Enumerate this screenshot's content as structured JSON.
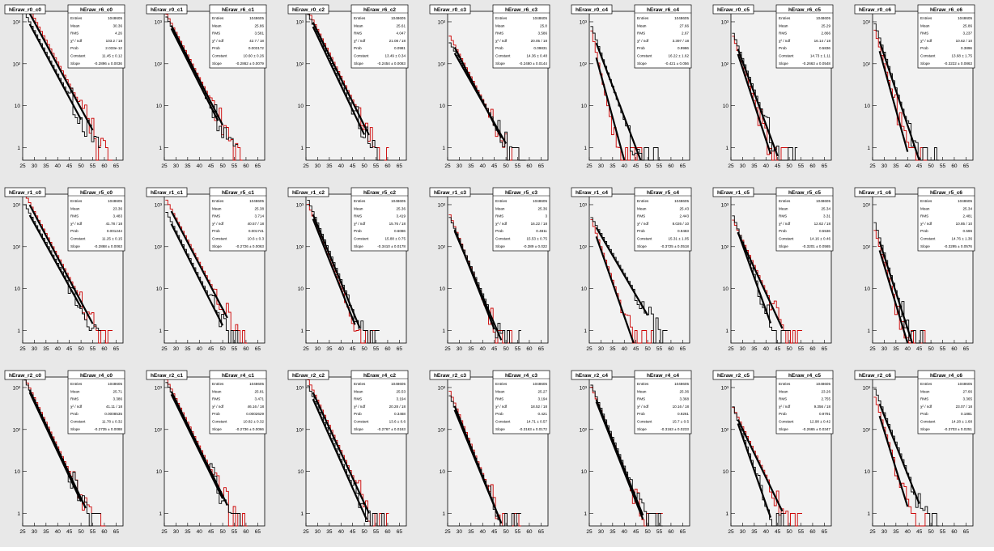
{
  "stat_labels": {
    "entries": "Entries",
    "mean": "Mean",
    "rms": "RMS",
    "chi2": "χ² / ndf",
    "prob": "Prob",
    "constant": "Constant",
    "slope": "Slope"
  },
  "x_ticks": [
    "25",
    "30",
    "35",
    "40",
    "45",
    "50",
    "55",
    "60",
    "65"
  ],
  "y_tick_labels": [
    "1",
    "10",
    "10²",
    "10³"
  ],
  "colors": {
    "frame_bg": "#e8e8e8",
    "plot_bg": "#f2f2f2",
    "hist_a": "#000000",
    "hist_b": "#cc0000",
    "fit": "#000000"
  },
  "chart_data": [
    {
      "type": "line",
      "title": "hEraw_r0_c0",
      "stat_title": "hEraw_r6_c0",
      "stats": {
        "entries": "1048605",
        "mean": "30.36",
        "rms": "4.26",
        "chi2": "103.2 / 18",
        "prob": "2.033e-12",
        "constant": "11.45 ± 0.12",
        "slope": "-0.2896 ± 0.0036"
      },
      "xlim": [
        25,
        68
      ],
      "ylim_log": [
        0.5,
        3
      ],
      "xlabel": "",
      "ylabel": "",
      "a": {
        "c": 3.05,
        "k": 0.1035,
        "end": 50
      },
      "b": {
        "c": 3.35,
        "k": 0.1048,
        "end": 55
      },
      "series": [
        {
          "color": "#000000",
          "values": []
        },
        {
          "color": "#cc0000",
          "values": []
        }
      ]
    },
    {
      "type": "line",
      "title": "hEraw_r0_c1",
      "stat_title": "hEraw_r6_c1",
      "stats": {
        "entries": "1048605",
        "mean": "25.86",
        "rms": "3.581",
        "chi2": "42.7 / 18",
        "prob": "0.003172",
        "constant": "10.60 ± 0.26",
        "slope": "-0.2862 ± 0.0079"
      },
      "xlim": [
        25,
        68
      ],
      "ylim_log": [
        0.5,
        3
      ],
      "xlabel": "",
      "ylabel": "",
      "a": {
        "c": 2.95,
        "k": 0.11,
        "end": 48
      },
      "b": {
        "c": 3.02,
        "k": 0.108,
        "end": 50
      },
      "series": [
        {
          "color": "#000000",
          "values": []
        },
        {
          "color": "#cc0000",
          "values": []
        }
      ]
    },
    {
      "type": "line",
      "title": "hEraw_r0_c2",
      "stat_title": "hEraw_r6_c2",
      "stats": {
        "entries": "1048605",
        "mean": "25.61",
        "rms": "4.047",
        "chi2": "21.08 / 18",
        "prob": "0.0981",
        "constant": "13.49 ± 0.34",
        "slope": "-0.2454 ± 0.0083"
      },
      "xlim": [
        25,
        68
      ],
      "ylim_log": [
        0.5,
        3
      ],
      "xlabel": "",
      "ylabel": "",
      "a": {
        "c": 3.0,
        "k": 0.117,
        "end": 50
      },
      "b": {
        "c": 3.1,
        "k": 0.112,
        "end": 52
      },
      "series": [
        {
          "color": "#000000",
          "values": []
        },
        {
          "color": "#cc0000",
          "values": []
        }
      ]
    },
    {
      "type": "line",
      "title": "hEraw_r0_c3",
      "stat_title": "hEraw_r6_c3",
      "stats": {
        "entries": "1048605",
        "mean": "25.8",
        "rms": "3.586",
        "chi2": "20.05 / 18",
        "prob": "0.09831",
        "constant": "14.36 ± 0.48",
        "slope": "-0.2480 ± 0.0144"
      },
      "xlim": [
        25,
        68
      ],
      "ylim_log": [
        0.5,
        3
      ],
      "xlabel": "",
      "ylabel": "",
      "a": {
        "c": 2.35,
        "k": 0.098,
        "end": 50
      },
      "b": {
        "c": 2.5,
        "k": 0.108,
        "end": 48
      },
      "series": [
        {
          "color": "#000000",
          "values": []
        },
        {
          "color": "#cc0000",
          "values": []
        }
      ]
    },
    {
      "type": "line",
      "title": "hEraw_r0_c4",
      "stat_title": "hEraw_r6_c4",
      "stats": {
        "entries": "1048605",
        "mean": "27.66",
        "rms": "2.67",
        "chi2": "3.397 / 18",
        "prob": "0.9986",
        "constant": "16.22 ± 1.62",
        "slope": "-0.421 ± 0.056"
      },
      "xlim": [
        25,
        68
      ],
      "ylim_log": [
        0.5,
        3
      ],
      "xlabel": "",
      "ylabel": "",
      "a": {
        "c": 2.65,
        "k": 0.158,
        "end": 47
      },
      "b": {
        "c": 2.4,
        "k": 0.255,
        "end": 40
      },
      "series": [
        {
          "color": "#000000",
          "values": []
        },
        {
          "color": "#cc0000",
          "values": []
        }
      ]
    },
    {
      "type": "line",
      "title": "hEraw_r0_c5",
      "stat_title": "hEraw_r6_c5",
      "stats": {
        "entries": "1048605",
        "mean": "25.29",
        "rms": "2.866",
        "chi2": "16.14 / 18",
        "prob": "0.5836",
        "constant": "14.73 ± 1.11",
        "slope": "-0.2663 ± 0.0548"
      },
      "xlim": [
        25,
        68
      ],
      "ylim_log": [
        0.5,
        3
      ],
      "xlabel": "",
      "ylabel": "",
      "a": {
        "c": 2.5,
        "k": 0.15,
        "end": 45
      },
      "b": {
        "c": 2.4,
        "k": 0.17,
        "end": 42
      },
      "series": [
        {
          "color": "#000000",
          "values": []
        },
        {
          "color": "#cc0000",
          "values": []
        }
      ]
    },
    {
      "type": "line",
      "title": "hEraw_r0_c6",
      "stat_title": "hEraw_r6_c6",
      "stats": {
        "entries": "1048605",
        "mean": "25.86",
        "rms": "3.237",
        "chi2": "10.62 / 10",
        "prob": "0.3896",
        "constant": "13.68 ± 1.75",
        "slope": "-0.3222 ± 0.0863"
      },
      "xlim": [
        25,
        68
      ],
      "ylim_log": [
        0.5,
        3
      ],
      "xlabel": "",
      "ylabel": "",
      "a": {
        "c": 2.7,
        "k": 0.17,
        "end": 45
      },
      "b": {
        "c": 2.5,
        "k": 0.2,
        "end": 40
      },
      "series": [
        {
          "color": "#000000",
          "values": []
        },
        {
          "color": "#cc0000",
          "values": []
        }
      ]
    },
    {
      "type": "line",
      "title": "hEraw_r1_c0",
      "stat_title": "hEraw_r5_c0",
      "stats": {
        "entries": "1048605",
        "mean": "23.36",
        "rms": "3.483",
        "chi2": "41.78 / 18",
        "prob": "0.001244",
        "constant": "11.25 ± 0.15",
        "slope": "-0.2868 ± 0.0063"
      },
      "xlim": [
        25,
        68
      ],
      "ylim_log": [
        0.5,
        3
      ],
      "xlabel": "",
      "ylabel": "",
      "a": {
        "c": 2.85,
        "k": 0.1,
        "end": 50
      },
      "b": {
        "c": 3.1,
        "k": 0.105,
        "end": 55
      },
      "series": [
        {
          "color": "#000000",
          "values": []
        },
        {
          "color": "#cc0000",
          "values": []
        }
      ]
    },
    {
      "type": "line",
      "title": "hEraw_r1_c1",
      "stat_title": "hEraw_r5_c1",
      "stats": {
        "entries": "1048605",
        "mean": "25.38",
        "rms": "3.714",
        "chi2": "40.57 / 18",
        "prob": "0.001741",
        "constant": "10.6 ± 0.3",
        "slope": "-0.2726 ± 0.0063"
      },
      "xlim": [
        25,
        68
      ],
      "ylim_log": [
        0.5,
        3
      ],
      "xlabel": "",
      "ylabel": "",
      "a": {
        "c": 2.65,
        "k": 0.11,
        "end": 50
      },
      "b": {
        "c": 2.95,
        "k": 0.106,
        "end": 52
      },
      "series": [
        {
          "color": "#000000",
          "values": []
        },
        {
          "color": "#cc0000",
          "values": []
        }
      ]
    },
    {
      "type": "line",
      "title": "hEraw_r1_c2",
      "stat_title": "hEraw_r5_c2",
      "stats": {
        "entries": "1048605",
        "mean": "25.36",
        "rms": "3.419",
        "chi2": "15.76 / 18",
        "prob": "0.6086",
        "constant": "15.88 ± 0.75",
        "slope": "-0.3410 ± 0.0178"
      },
      "xlim": [
        25,
        68
      ],
      "ylim_log": [
        0.5,
        3
      ],
      "xlabel": "",
      "ylabel": "",
      "a": {
        "c": 2.9,
        "k": 0.135,
        "end": 48
      },
      "b": {
        "c": 2.8,
        "k": 0.14,
        "end": 46
      },
      "series": [
        {
          "color": "#000000",
          "values": []
        },
        {
          "color": "#cc0000",
          "values": []
        }
      ]
    },
    {
      "type": "line",
      "title": "hEraw_r1_c3",
      "stat_title": "hEraw_r5_c3",
      "stats": {
        "entries": "1048605",
        "mean": "25.36",
        "rms": "3",
        "chi2": "16.22 / 18",
        "prob": "0.4811",
        "constant": "15.53 ± 0.75",
        "slope": "-0.389 ± 0.022"
      },
      "xlim": [
        25,
        68
      ],
      "ylim_log": [
        0.5,
        3
      ],
      "xlabel": "",
      "ylabel": "",
      "a": {
        "c": 2.5,
        "k": 0.13,
        "end": 48
      },
      "b": {
        "c": 2.55,
        "k": 0.14,
        "end": 45
      },
      "series": [
        {
          "color": "#000000",
          "values": []
        },
        {
          "color": "#cc0000",
          "values": []
        }
      ]
    },
    {
      "type": "line",
      "title": "hEraw_r1_c4",
      "stat_title": "hEraw_r5_c4",
      "stats": {
        "entries": "1048605",
        "mean": "25.43",
        "rms": "2.443",
        "chi2": "8.026 / 10",
        "prob": "0.9483",
        "constant": "15.31 ± 1.05",
        "slope": "-0.3725 ± 0.0518"
      },
      "xlim": [
        25,
        68
      ],
      "ylim_log": [
        0.5,
        3
      ],
      "xlabel": "",
      "ylabel": "",
      "a": {
        "c": 2.55,
        "k": 0.095,
        "end": 50
      },
      "b": {
        "c": 2.4,
        "k": 0.16,
        "end": 44
      },
      "series": [
        {
          "color": "#000000",
          "values": []
        },
        {
          "color": "#cc0000",
          "values": []
        }
      ]
    },
    {
      "type": "line",
      "title": "hEraw_r1_c5",
      "stat_title": "hEraw_r5_c5",
      "stats": {
        "entries": "1048605",
        "mean": "25.34",
        "rms": "3.31",
        "chi2": "12.62 / 18",
        "prob": "0.5536",
        "constant": "14.16 ± 0.46",
        "slope": "-0.3201 ± 0.0565"
      },
      "xlim": [
        25,
        68
      ],
      "ylim_log": [
        0.5,
        3
      ],
      "xlabel": "",
      "ylabel": "",
      "a": {
        "c": 2.5,
        "k": 0.155,
        "end": 42
      },
      "b": {
        "c": 2.45,
        "k": 0.12,
        "end": 47
      },
      "series": [
        {
          "color": "#000000",
          "values": []
        },
        {
          "color": "#cc0000",
          "values": []
        }
      ]
    },
    {
      "type": "line",
      "title": "hEraw_r1_c6",
      "stat_title": "hEraw_r5_c6",
      "stats": {
        "entries": "1048605",
        "mean": "25.34",
        "rms": "2.481",
        "chi2": "10.85 / 10",
        "prob": "0.596",
        "constant": "14.76 ± 1.36",
        "slope": "-0.3295 ± 0.0576"
      },
      "xlim": [
        25,
        68
      ],
      "ylim_log": [
        0.5,
        3
      ],
      "xlabel": "",
      "ylabel": "",
      "a": {
        "c": 2.3,
        "k": 0.18,
        "end": 42
      },
      "b": {
        "c": 2.1,
        "k": 0.19,
        "end": 40
      },
      "series": [
        {
          "color": "#000000",
          "values": []
        },
        {
          "color": "#cc0000",
          "values": []
        }
      ]
    },
    {
      "type": "line",
      "title": "hEraw_r2_c0",
      "stat_title": "hEraw_r4_c0",
      "stats": {
        "entries": "1048605",
        "mean": "25.71",
        "rms": "3.386",
        "chi2": "41.11 / 18",
        "prob": "0.0008535",
        "constant": "11.78 ± 0.32",
        "slope": "-0.2735 ± 0.0088"
      },
      "xlim": [
        25,
        68
      ],
      "ylim_log": [
        0.5,
        3
      ],
      "xlabel": "",
      "ylabel": "",
      "a": {
        "c": 3.0,
        "k": 0.118,
        "end": 50
      },
      "b": {
        "c": 3.05,
        "k": 0.117,
        "end": 52
      },
      "series": [
        {
          "color": "#000000",
          "values": []
        },
        {
          "color": "#cc0000",
          "values": []
        }
      ]
    },
    {
      "type": "line",
      "title": "hEraw_r2_c1",
      "stat_title": "hEraw_r4_c1",
      "stats": {
        "entries": "1048605",
        "mean": "25.81",
        "rms": "3.471",
        "chi2": "46.16 / 18",
        "prob": "0.0002629",
        "constant": "10.82 ± 0.32",
        "slope": "-0.2736 ± 0.0066"
      },
      "xlim": [
        25,
        68
      ],
      "ylim_log": [
        0.5,
        3
      ],
      "xlabel": "",
      "ylabel": "",
      "a": {
        "c": 2.95,
        "k": 0.113,
        "end": 50
      },
      "b": {
        "c": 3.02,
        "k": 0.113,
        "end": 52
      },
      "series": [
        {
          "color": "#000000",
          "values": []
        },
        {
          "color": "#cc0000",
          "values": []
        }
      ]
    },
    {
      "type": "line",
      "title": "hEraw_r2_c2",
      "stat_title": "hEraw_r4_c2",
      "stats": {
        "entries": "1048605",
        "mean": "25.53",
        "rms": "3.194",
        "chi2": "20.28 / 18",
        "prob": "0.3468",
        "constant": "13.6 ± 0.6",
        "slope": "-0.2767 ± 0.0163"
      },
      "xlim": [
        25,
        68
      ],
      "ylim_log": [
        0.5,
        3
      ],
      "xlabel": "",
      "ylabel": "",
      "a": {
        "c": 2.85,
        "k": 0.125,
        "end": 51
      },
      "b": {
        "c": 3.0,
        "k": 0.12,
        "end": 52
      },
      "series": [
        {
          "color": "#000000",
          "values": []
        },
        {
          "color": "#cc0000",
          "values": []
        }
      ]
    },
    {
      "type": "line",
      "title": "hEraw_r2_c3",
      "stat_title": "hEraw_r4_c3",
      "stats": {
        "entries": "1048605",
        "mean": "25.27",
        "rms": "3.194",
        "chi2": "18.52 / 18",
        "prob": "0.421",
        "constant": "14.71 ± 0.57",
        "slope": "-0.3163 ± 0.0172"
      },
      "xlim": [
        25,
        68
      ],
      "ylim_log": [
        0.5,
        3
      ],
      "xlabel": "",
      "ylabel": "",
      "a": {
        "c": 2.6,
        "k": 0.135,
        "end": 48
      },
      "b": {
        "c": 2.7,
        "k": 0.14,
        "end": 48
      },
      "series": [
        {
          "color": "#000000",
          "values": []
        },
        {
          "color": "#cc0000",
          "values": []
        }
      ]
    },
    {
      "type": "line",
      "title": "hEraw_r2_c4",
      "stat_title": "hEraw_r4_c4",
      "stats": {
        "entries": "1048605",
        "mean": "25.36",
        "rms": "3.368",
        "chi2": "10.16 / 18",
        "prob": "0.9261",
        "constant": "15.7 ± 0.5",
        "slope": "-0.3163 ± 0.0233"
      },
      "xlim": [
        25,
        68
      ],
      "ylim_log": [
        0.5,
        3
      ],
      "xlabel": "",
      "ylabel": "",
      "a": {
        "c": 2.85,
        "k": 0.138,
        "end": 48
      },
      "b": {
        "c": 2.8,
        "k": 0.14,
        "end": 48
      },
      "series": [
        {
          "color": "#000000",
          "values": []
        },
        {
          "color": "#cc0000",
          "values": []
        }
      ]
    },
    {
      "type": "line",
      "title": "hEraw_r2_c5",
      "stat_title": "hEraw_r4_c5",
      "stats": {
        "entries": "1048605",
        "mean": "23.26",
        "rms": "2.755",
        "chi2": "9.356 / 18",
        "prob": "0.9791",
        "constant": "12.98 ± 0.42",
        "slope": "-0.2665 ± 0.0347"
      },
      "xlim": [
        25,
        68
      ],
      "ylim_log": [
        0.5,
        3
      ],
      "xlabel": "",
      "ylabel": "",
      "a": {
        "c": 2.3,
        "k": 0.16,
        "end": 42
      },
      "b": {
        "c": 2.35,
        "k": 0.115,
        "end": 47
      },
      "series": [
        {
          "color": "#000000",
          "values": []
        },
        {
          "color": "#cc0000",
          "values": []
        }
      ]
    },
    {
      "type": "line",
      "title": "hEraw_r2_c6",
      "stat_title": "hEraw_r4_c6",
      "stats": {
        "entries": "1048605",
        "mean": "27.66",
        "rms": "3.365",
        "chi2": "23.07 / 18",
        "prob": "0.1881",
        "constant": "14.28 ± 1.68",
        "slope": "-0.3703 ± 0.0251"
      },
      "xlim": [
        25,
        68
      ],
      "ylim_log": [
        0.5,
        3
      ],
      "xlabel": "",
      "ylabel": "",
      "a": {
        "c": 2.75,
        "k": 0.14,
        "end": 45
      },
      "b": {
        "c": 2.5,
        "k": 0.18,
        "end": 40
      },
      "series": [
        {
          "color": "#000000",
          "values": []
        },
        {
          "color": "#cc0000",
          "values": []
        }
      ]
    }
  ]
}
